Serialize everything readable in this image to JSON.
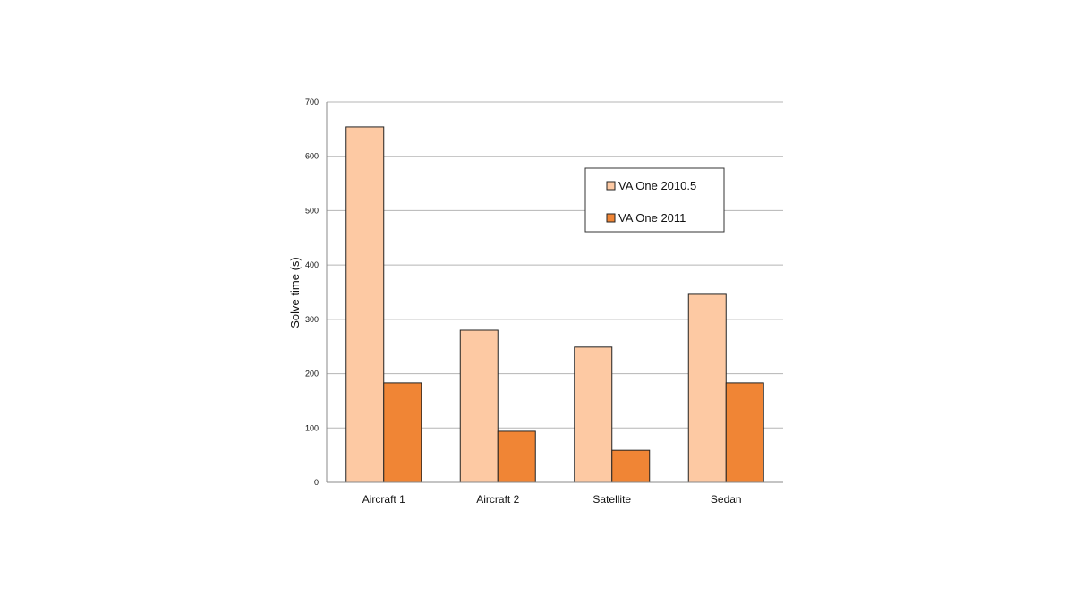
{
  "chart_data": {
    "type": "bar",
    "title": "",
    "xlabel": "",
    "ylabel": "Solve time (s)",
    "ylim": [
      0,
      700
    ],
    "yticks": [
      "0",
      "100",
      "200",
      "300",
      "400",
      "500",
      "600",
      "700"
    ],
    "categories": [
      "Aircraft 1",
      "Aircraft 2",
      "Satellite",
      "Sedan"
    ],
    "series": [
      {
        "name": "VA One 2010.5",
        "values": [
          654,
          280,
          249,
          346
        ],
        "color": "#fdc9a3"
      },
      {
        "name": "VA One 2011",
        "values": [
          183,
          94,
          59,
          183
        ],
        "color": "#f08535"
      }
    ],
    "grid": true,
    "legend_position": "top-right"
  }
}
